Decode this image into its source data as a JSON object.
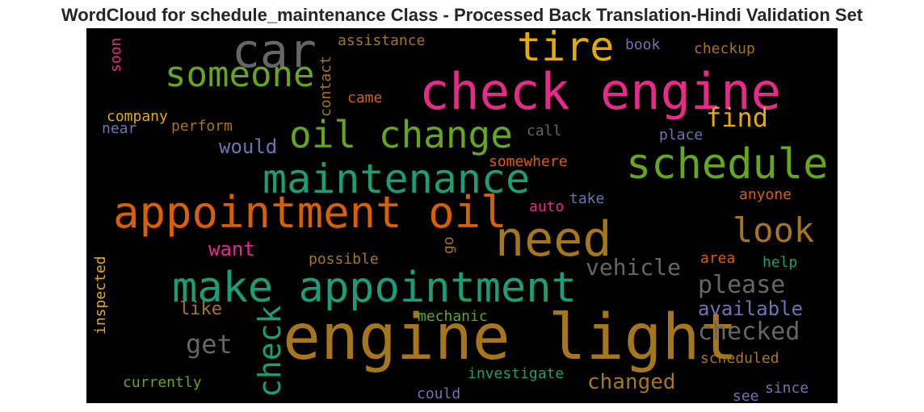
{
  "chart_data": {
    "type": "wordcloud",
    "title": "WordCloud for schedule_maintenance Class - Processed Back Translation-Hindi Validation Set",
    "background": "#000000",
    "words": [
      {
        "text": "check engine",
        "weight": 62,
        "color": "#e7298a",
        "orientation": "horizontal"
      },
      {
        "text": "engine light",
        "weight": 78,
        "color": "#a6761d",
        "orientation": "horizontal"
      },
      {
        "text": "make appointment",
        "weight": 52,
        "color": "#1b9e77",
        "orientation": "horizontal"
      },
      {
        "text": "appointment oil",
        "weight": 54,
        "color": "#d95f02",
        "orientation": "horizontal"
      },
      {
        "text": "maintenance",
        "weight": 50,
        "color": "#1b9e77",
        "orientation": "horizontal"
      },
      {
        "text": "need",
        "weight": 60,
        "color": "#a6761d",
        "orientation": "horizontal"
      },
      {
        "text": "oil change",
        "weight": 46,
        "color": "#66a61e",
        "orientation": "horizontal"
      },
      {
        "text": "schedule",
        "weight": 52,
        "color": "#66a61e",
        "orientation": "horizontal"
      },
      {
        "text": "car",
        "weight": 58,
        "color": "#666666",
        "orientation": "horizontal"
      },
      {
        "text": "tire",
        "weight": 50,
        "color": "#e6ab02",
        "orientation": "horizontal"
      },
      {
        "text": "someone",
        "weight": 44,
        "color": "#66a61e",
        "orientation": "horizontal"
      },
      {
        "text": "look",
        "weight": 42,
        "color": "#a6761d",
        "orientation": "horizontal"
      },
      {
        "text": "check",
        "weight": 38,
        "color": "#1b9e77",
        "orientation": "vertical"
      },
      {
        "text": "find",
        "weight": 32,
        "color": "#e6ab02",
        "orientation": "horizontal"
      },
      {
        "text": "please",
        "weight": 30,
        "color": "#666666",
        "orientation": "horizontal"
      },
      {
        "text": "checked",
        "weight": 30,
        "color": "#666666",
        "orientation": "horizontal"
      },
      {
        "text": "vehicle",
        "weight": 28,
        "color": "#666666",
        "orientation": "horizontal"
      },
      {
        "text": "get",
        "weight": 32,
        "color": "#666666",
        "orientation": "horizontal"
      },
      {
        "text": "changed",
        "weight": 26,
        "color": "#a6761d",
        "orientation": "horizontal"
      },
      {
        "text": "available",
        "weight": 24,
        "color": "#7570b3",
        "orientation": "horizontal"
      },
      {
        "text": "want",
        "weight": 24,
        "color": "#e7298a",
        "orientation": "horizontal"
      },
      {
        "text": "would",
        "weight": 24,
        "color": "#7570b3",
        "orientation": "horizontal"
      },
      {
        "text": "like",
        "weight": 22,
        "color": "#a6761d",
        "orientation": "horizontal"
      },
      {
        "text": "assistance",
        "weight": 18,
        "color": "#a6761d",
        "orientation": "horizontal"
      },
      {
        "text": "checkup",
        "weight": 18,
        "color": "#a6761d",
        "orientation": "horizontal"
      },
      {
        "text": "book",
        "weight": 18,
        "color": "#7570b3",
        "orientation": "horizontal"
      },
      {
        "text": "contact",
        "weight": 18,
        "color": "#a6761d",
        "orientation": "vertical"
      },
      {
        "text": "soon",
        "weight": 18,
        "color": "#e7298a",
        "orientation": "vertical"
      },
      {
        "text": "came",
        "weight": 18,
        "color": "#d95f02",
        "orientation": "horizontal"
      },
      {
        "text": "company",
        "weight": 18,
        "color": "#e6ab02",
        "orientation": "horizontal"
      },
      {
        "text": "near",
        "weight": 18,
        "color": "#7570b3",
        "orientation": "horizontal"
      },
      {
        "text": "perform",
        "weight": 18,
        "color": "#a6761d",
        "orientation": "horizontal"
      },
      {
        "text": "call",
        "weight": 18,
        "color": "#666666",
        "orientation": "horizontal"
      },
      {
        "text": "place",
        "weight": 18,
        "color": "#7570b3",
        "orientation": "horizontal"
      },
      {
        "text": "somewhere",
        "weight": 18,
        "color": "#d95f02",
        "orientation": "horizontal"
      },
      {
        "text": "auto",
        "weight": 18,
        "color": "#e7298a",
        "orientation": "horizontal"
      },
      {
        "text": "take",
        "weight": 18,
        "color": "#7570b3",
        "orientation": "horizontal"
      },
      {
        "text": "anyone",
        "weight": 18,
        "color": "#d95f02",
        "orientation": "horizontal"
      },
      {
        "text": "go",
        "weight": 18,
        "color": "#a6761d",
        "orientation": "vertical"
      },
      {
        "text": "possible",
        "weight": 18,
        "color": "#a6761d",
        "orientation": "horizontal"
      },
      {
        "text": "area",
        "weight": 18,
        "color": "#d95f02",
        "orientation": "horizontal"
      },
      {
        "text": "help",
        "weight": 18,
        "color": "#1b9e77",
        "orientation": "horizontal"
      },
      {
        "text": "inspected",
        "weight": 18,
        "color": "#e6ab02",
        "orientation": "vertical"
      },
      {
        "text": "mechanic",
        "weight": 18,
        "color": "#66a61e",
        "orientation": "horizontal"
      },
      {
        "text": "scheduled",
        "weight": 18,
        "color": "#a6761d",
        "orientation": "horizontal"
      },
      {
        "text": "investigate",
        "weight": 18,
        "color": "#1b9e77",
        "orientation": "horizontal"
      },
      {
        "text": "currently",
        "weight": 18,
        "color": "#66a61e",
        "orientation": "horizontal"
      },
      {
        "text": "could",
        "weight": 18,
        "color": "#7570b3",
        "orientation": "horizontal"
      },
      {
        "text": "see",
        "weight": 18,
        "color": "#7570b3",
        "orientation": "horizontal"
      },
      {
        "text": "since",
        "weight": 18,
        "color": "#7570b3",
        "orientation": "horizontal"
      }
    ]
  }
}
